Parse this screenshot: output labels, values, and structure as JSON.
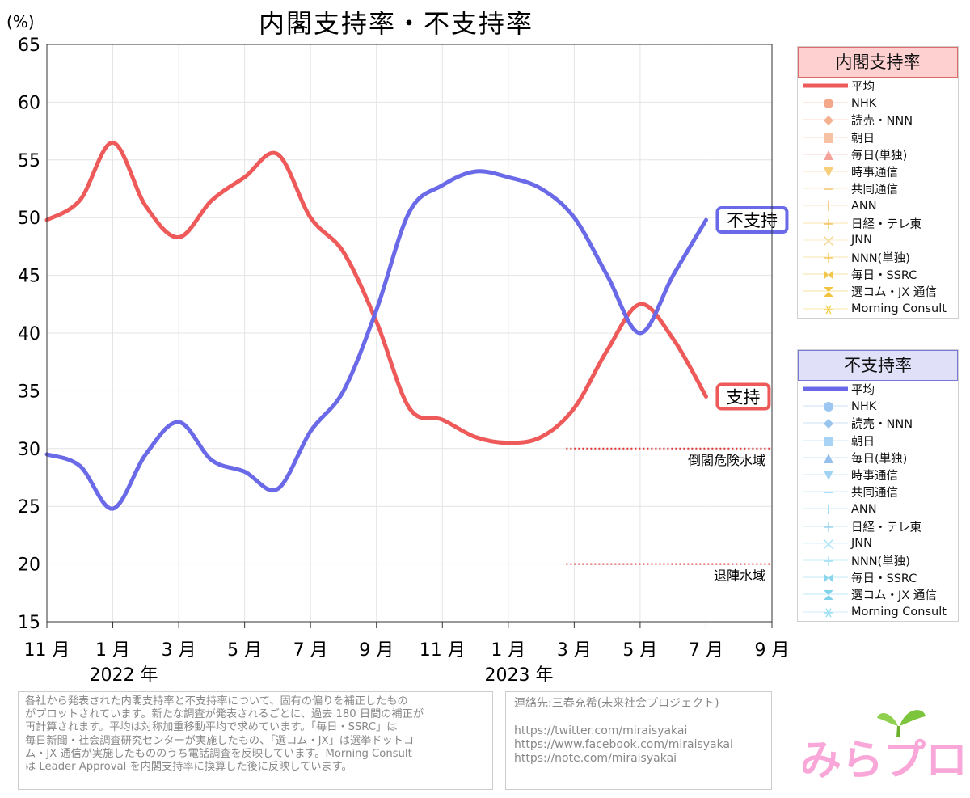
{
  "chart_data": {
    "type": "line",
    "title": "内閣支持率・不支持率",
    "ylabel": "(%)",
    "ylim": [
      15,
      65
    ],
    "yticks": [
      15,
      20,
      25,
      30,
      35,
      40,
      45,
      50,
      55,
      60,
      65
    ],
    "xlim": [
      "2021-11",
      "2023-09"
    ],
    "x_tick_labels": [
      "11 月",
      "1 月",
      "3 月",
      "5 月",
      "7 月",
      "9 月",
      "11 月",
      "1 月",
      "3 月",
      "5 月",
      "7 月",
      "9 月"
    ],
    "year_labels": [
      "2022 年",
      "2023 年"
    ],
    "grid": true,
    "threshold_lines": [
      {
        "label": "倒閣危険水域",
        "value": 30,
        "from": "2023-03"
      },
      {
        "label": "退陣水域",
        "value": 20,
        "from": "2023-03"
      }
    ],
    "series": [
      {
        "name": "支持",
        "color": "#ee5a5a",
        "months": [
          "2021-11",
          "2021-12",
          "2022-01",
          "2022-02",
          "2022-03",
          "2022-04",
          "2022-05",
          "2022-06",
          "2022-07",
          "2022-08",
          "2022-09",
          "2022-10",
          "2022-11",
          "2022-12",
          "2023-01",
          "2023-02",
          "2023-03",
          "2023-04",
          "2023-05",
          "2023-06",
          "2023-07"
        ],
        "values": [
          49.8,
          51.5,
          56.5,
          51.0,
          48.3,
          51.5,
          53.5,
          55.5,
          50.0,
          47.0,
          41.0,
          33.5,
          32.5,
          31.0,
          30.5,
          31.0,
          33.5,
          38.5,
          42.5,
          39.5,
          34.5
        ]
      },
      {
        "name": "不支持",
        "color": "#6a6ae8",
        "months": [
          "2021-11",
          "2021-12",
          "2022-01",
          "2022-02",
          "2022-03",
          "2022-04",
          "2022-05",
          "2022-06",
          "2022-07",
          "2022-08",
          "2022-09",
          "2022-10",
          "2022-11",
          "2022-12",
          "2023-01",
          "2023-02",
          "2023-03",
          "2023-04",
          "2023-05",
          "2023-06",
          "2023-07"
        ],
        "values": [
          29.5,
          28.5,
          24.8,
          29.5,
          32.3,
          29.0,
          28.0,
          26.5,
          31.5,
          35.0,
          42.0,
          50.5,
          52.8,
          54.0,
          53.5,
          52.5,
          50.0,
          45.0,
          40.0,
          45.0,
          49.8
        ]
      }
    ],
    "series_labels": [
      {
        "text": "不支持",
        "color": "#6a6ae8"
      },
      {
        "text": "支持",
        "color": "#ee5a5a"
      }
    ]
  },
  "legend_support": {
    "title": "内閣支持率",
    "title_bg": "#ffd0d0",
    "items": [
      "平均",
      "NHK",
      "読売・NNN",
      "朝日",
      "毎日(単独)",
      "時事通信",
      "共同通信",
      "ANN",
      "日経・テレ東",
      "JNN",
      "NNN(単独)",
      "毎日・SSRC",
      "選コム・JX 通信",
      "Morning Consult"
    ]
  },
  "legend_oppose": {
    "title": "不支持率",
    "title_bg": "#e0e0f8",
    "items": [
      "平均",
      "NHK",
      "読売・NNN",
      "朝日",
      "毎日(単独)",
      "時事通信",
      "共同通信",
      "ANN",
      "日経・テレ東",
      "JNN",
      "NNN(単独)",
      "毎日・SSRC",
      "選コム・JX 通信",
      "Morning Consult"
    ]
  },
  "note": {
    "lines": [
      "各社から発表された内閣支持率と不支持率について、固有の偏りを補正したもの",
      "がプロットされています。新たな調査が発表されるごとに、過去 180 日間の補正が",
      "再計算されます。平均は対称加重移動平均で求めています。「毎日・SSRC」は",
      "毎日新聞・社会調査研究センターが実施したもの、「選コム・JX」は選挙ドットコ",
      "ム・JX 通信が実施したもののうち電話調査を反映しています。Morning Consult",
      "は Leader Approval を内閣支持率に換算した後に反映しています。"
    ]
  },
  "contact": {
    "label": "連絡先:三春充希(未来社会プロジェクト)",
    "links": [
      "https://twitter.com/miraisyakai",
      "https://www.facebook.com/miraisyakai",
      "https://note.com/miraisyakai"
    ]
  },
  "logo": {
    "text": "みらプロ"
  }
}
